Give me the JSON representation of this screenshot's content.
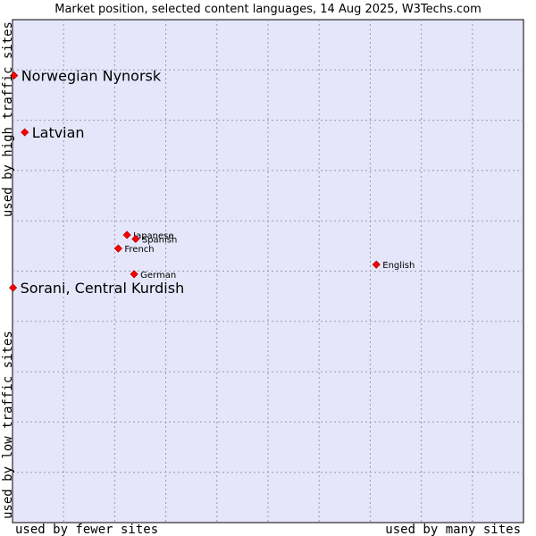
{
  "chart_data": {
    "type": "scatter",
    "title": "Market position, selected content languages, 14 Aug 2025, W3Techs.com",
    "xlabel_left": "used by fewer sites",
    "xlabel_right": "used by many sites",
    "ylabel_low": "used by low traffic sites",
    "ylabel_high": "used by high traffic sites",
    "xlim": [
      0,
      100
    ],
    "ylim": [
      0,
      100
    ],
    "grid": true,
    "colors": {
      "background": "#e6e6fa",
      "grid": "#9a9ab0",
      "marker": "#ff0000"
    },
    "points": [
      {
        "label": "Norwegian Nynorsk",
        "x": 0.3,
        "y": 88.9,
        "emphasis": true
      },
      {
        "label": "Latvian",
        "x": 2.4,
        "y": 77.6,
        "emphasis": true
      },
      {
        "label": "Sorani, Central Kurdish",
        "x": 0.1,
        "y": 46.7,
        "emphasis": true
      },
      {
        "label": "Japanese",
        "x": 22.4,
        "y": 57.2,
        "emphasis": false
      },
      {
        "label": "Spanish",
        "x": 24.1,
        "y": 56.4,
        "emphasis": false
      },
      {
        "label": "French",
        "x": 20.7,
        "y": 54.5,
        "emphasis": false
      },
      {
        "label": "German",
        "x": 23.8,
        "y": 49.4,
        "emphasis": false
      },
      {
        "label": "English",
        "x": 71.2,
        "y": 51.3,
        "emphasis": false
      }
    ]
  }
}
